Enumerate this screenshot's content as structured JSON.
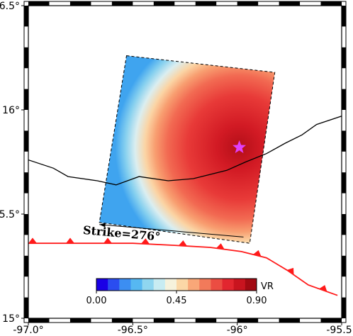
{
  "map": {
    "lon_range": [
      -97.0,
      -95.5
    ],
    "lat_range": [
      15.0,
      16.5
    ],
    "x_ticks": [
      {
        "value": -97.0,
        "label": "-97.0°"
      },
      {
        "value": -96.5,
        "label": "-96.5°"
      },
      {
        "value": -96.0,
        "label": "-96°"
      },
      {
        "value": -95.5,
        "label": "-95.5°"
      }
    ],
    "y_ticks": [
      {
        "value": 15.0,
        "label": "15°"
      },
      {
        "value": 15.5,
        "label": "15.5°"
      },
      {
        "value": 16.0,
        "label": "16°"
      },
      {
        "value": 16.5,
        "label": "16.5°"
      }
    ],
    "epicenter": {
      "lon": -95.99,
      "lat": 15.82,
      "color": "#e040fb"
    },
    "fault_plane_corners": [
      [
        -96.53,
        16.26
      ],
      [
        -95.82,
        16.18
      ],
      [
        -95.94,
        15.36
      ],
      [
        -96.66,
        15.46
      ]
    ],
    "strike_label": "Strike=276°",
    "strike_arrow": {
      "from": [
        -95.97,
        15.39
      ],
      "to": [
        -96.66,
        15.45
      ]
    },
    "coastline": [
      [
        -97.0,
        15.76
      ],
      [
        -96.88,
        15.72
      ],
      [
        -96.81,
        15.68
      ],
      [
        -96.67,
        15.66
      ],
      [
        -96.58,
        15.64
      ],
      [
        -96.47,
        15.68
      ],
      [
        -96.33,
        15.66
      ],
      [
        -96.21,
        15.67
      ],
      [
        -96.05,
        15.71
      ],
      [
        -95.96,
        15.75
      ],
      [
        -95.86,
        15.79
      ],
      [
        -95.77,
        15.84
      ],
      [
        -95.69,
        15.88
      ],
      [
        -95.62,
        15.93
      ],
      [
        -95.5,
        15.97
      ]
    ],
    "trench": [
      [
        -97.0,
        15.36
      ],
      [
        -96.74,
        15.36
      ],
      [
        -96.5,
        15.36
      ],
      [
        -96.3,
        15.35
      ],
      [
        -96.13,
        15.34
      ],
      [
        -95.98,
        15.32
      ],
      [
        -95.86,
        15.29
      ],
      [
        -95.76,
        15.23
      ],
      [
        -95.66,
        15.16
      ],
      [
        -95.52,
        15.11
      ]
    ],
    "trench_color": "#ff1a1a"
  },
  "colorbar": {
    "label": "VR",
    "tick_labels": [
      "0.00",
      "0.45",
      "0.90"
    ],
    "range": [
      0.0,
      0.9
    ],
    "colors": [
      "#1a00e6",
      "#2a4df0",
      "#3c8ef2",
      "#56b8f2",
      "#8fd6f0",
      "#c8ecf2",
      "#f6f2dc",
      "#fbd7a6",
      "#f9a778",
      "#f27a5a",
      "#eb4d42",
      "#e2262f",
      "#c9141f",
      "#a20a12"
    ]
  }
}
